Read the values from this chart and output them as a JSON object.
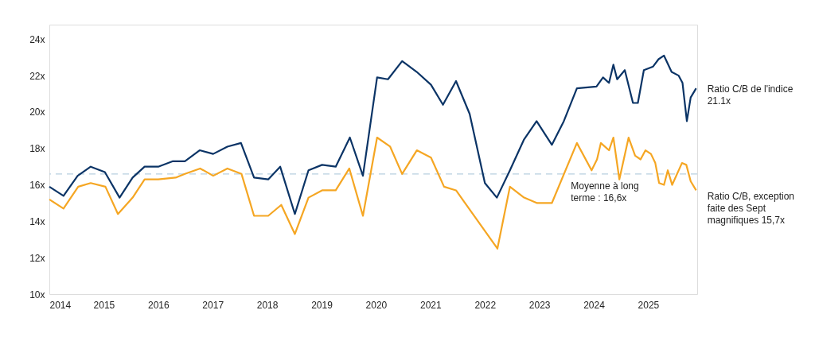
{
  "chart_data": {
    "type": "line",
    "xlim": [
      2014,
      2025.9
    ],
    "xticks": [
      2014,
      2015,
      2016,
      2017,
      2018,
      2019,
      2020,
      2021,
      2022,
      2023,
      2024,
      2025
    ],
    "ylim": [
      10,
      24.8
    ],
    "yticks": [
      {
        "value": 10,
        "label": "10x"
      },
      {
        "value": 12,
        "label": "12x"
      },
      {
        "value": 14,
        "label": "14x"
      },
      {
        "value": 16,
        "label": "16x"
      },
      {
        "value": 18,
        "label": "18x"
      },
      {
        "value": 20,
        "label": "20x"
      },
      {
        "value": 22,
        "label": "22x"
      },
      {
        "value": 24,
        "label": "24x"
      }
    ],
    "grid": false,
    "legend": false,
    "marker": "none",
    "line_style": "solid",
    "series": [
      {
        "name": "Ratio C/B de l'indice 21.1x",
        "color": "#0b3466",
        "x": [
          2014.0,
          2014.26,
          2014.52,
          2014.76,
          2015.02,
          2015.29,
          2015.53,
          2015.75,
          2016.0,
          2016.27,
          2016.49,
          2016.76,
          2017.01,
          2017.27,
          2017.52,
          2017.76,
          2018.02,
          2018.24,
          2018.51,
          2018.76,
          2019.01,
          2019.26,
          2019.52,
          2019.76,
          2020.02,
          2020.22,
          2020.48,
          2020.75,
          2021.01,
          2021.23,
          2021.47,
          2021.72,
          2022.0,
          2022.22,
          2022.46,
          2022.72,
          2022.95,
          2023.23,
          2023.45,
          2023.69,
          2024.05,
          2024.17,
          2024.28,
          2024.36,
          2024.43,
          2024.57,
          2024.72,
          2024.81,
          2024.92,
          2025.09,
          2025.19,
          2025.29,
          2025.43,
          2025.56,
          2025.63,
          2025.71,
          2025.78,
          2025.88
        ],
        "values": [
          15.9,
          15.4,
          16.5,
          17.0,
          16.7,
          15.3,
          16.4,
          17.0,
          17.0,
          17.3,
          17.3,
          17.9,
          17.7,
          18.1,
          18.3,
          16.4,
          16.3,
          17.0,
          14.4,
          16.8,
          17.1,
          17.0,
          18.6,
          16.5,
          21.9,
          21.8,
          22.8,
          22.2,
          21.5,
          20.4,
          21.7,
          19.9,
          16.1,
          15.3,
          16.8,
          18.5,
          19.5,
          18.2,
          19.5,
          21.3,
          21.4,
          21.9,
          21.6,
          22.6,
          21.8,
          22.3,
          20.5,
          20.5,
          22.3,
          22.5,
          22.9,
          23.1,
          22.2,
          22.0,
          21.6,
          19.5,
          20.8,
          21.3
        ]
      },
      {
        "name": "Ratio C/B, exception faite des Sept magnifiques 15,7x",
        "color": "#f5a623",
        "x": [
          2014.0,
          2014.26,
          2014.53,
          2014.76,
          2015.03,
          2015.26,
          2015.53,
          2015.75,
          2016.0,
          2016.32,
          2016.49,
          2016.77,
          2017.01,
          2017.27,
          2017.53,
          2017.76,
          2018.02,
          2018.26,
          2018.51,
          2018.76,
          2019.01,
          2019.26,
          2019.51,
          2019.76,
          2020.02,
          2020.26,
          2020.48,
          2020.75,
          2021.01,
          2021.25,
          2021.47,
          2022.23,
          2022.46,
          2022.72,
          2022.96,
          2023.23,
          2023.69,
          2023.96,
          2024.06,
          2024.13,
          2024.28,
          2024.36,
          2024.47,
          2024.64,
          2024.76,
          2024.86,
          2024.95,
          2025.05,
          2025.13,
          2025.2,
          2025.29,
          2025.36,
          2025.44,
          2025.62,
          2025.7,
          2025.78,
          2025.88
        ],
        "values": [
          15.2,
          14.7,
          15.9,
          16.1,
          15.9,
          14.4,
          15.3,
          16.3,
          16.3,
          16.4,
          16.6,
          16.9,
          16.5,
          16.9,
          16.6,
          14.3,
          14.3,
          14.9,
          13.3,
          15.3,
          15.7,
          15.7,
          16.9,
          14.3,
          18.6,
          18.1,
          16.6,
          17.9,
          17.5,
          15.9,
          15.7,
          12.5,
          15.9,
          15.3,
          15.0,
          15.0,
          18.3,
          16.8,
          17.4,
          18.3,
          17.9,
          18.6,
          16.3,
          18.6,
          17.6,
          17.4,
          17.9,
          17.7,
          17.2,
          16.1,
          16.0,
          16.8,
          16.0,
          17.2,
          17.1,
          16.2,
          15.7
        ]
      }
    ],
    "ref_lines": [
      {
        "axis": "y",
        "value": 16.6,
        "label": "Moyenne à long terme : 16,6x",
        "color": "#b8cfe0",
        "line_style": "dashed"
      }
    ]
  }
}
